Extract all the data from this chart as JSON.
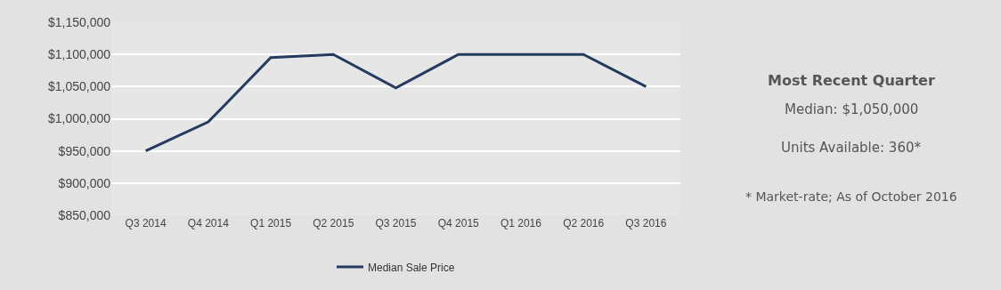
{
  "chart_data": {
    "type": "line",
    "categories": [
      "Q3 2014",
      "Q4 2014",
      "Q1 2015",
      "Q2 2015",
      "Q3 2015",
      "Q4 2015",
      "Q1 2016",
      "Q2 2016",
      "Q3 2016"
    ],
    "series": [
      {
        "name": "Median Sale Price",
        "color": "#243a5e",
        "values": [
          950000,
          995000,
          1095000,
          1100000,
          1048000,
          1100000,
          1100000,
          1100000,
          1050000
        ]
      }
    ],
    "ylim": [
      850000,
      1150000
    ],
    "yticks": [
      {
        "value": 850000,
        "label": "$850,000"
      },
      {
        "value": 900000,
        "label": "$900,000"
      },
      {
        "value": 950000,
        "label": "$950,000"
      },
      {
        "value": 1000000,
        "label": "$1,000,000"
      },
      {
        "value": 1050000,
        "label": "$1,050,000"
      },
      {
        "value": 1100000,
        "label": "$1,100,000"
      },
      {
        "value": 1150000,
        "label": "$1,150,000"
      }
    ],
    "grid": "y",
    "legend": "bottom",
    "annotations": [
      "Most Recent Quarter",
      "Median: $1,050,000",
      "Units Available: 360*",
      "* Market-rate; As of October 2016"
    ]
  }
}
